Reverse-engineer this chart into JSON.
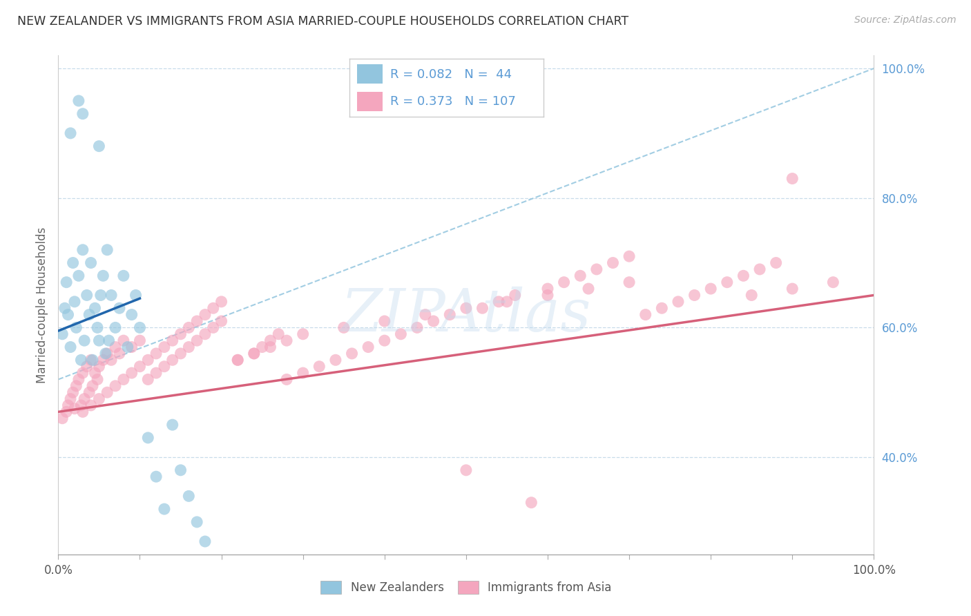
{
  "title": "NEW ZEALANDER VS IMMIGRANTS FROM ASIA MARRIED-COUPLE HOUSEHOLDS CORRELATION CHART",
  "source": "Source: ZipAtlas.com",
  "ylabel": "Married-couple Households",
  "legend1_label": "New Zealanders",
  "legend2_label": "Immigrants from Asia",
  "R1": 0.082,
  "N1": 44,
  "R2": 0.373,
  "N2": 107,
  "color_blue": "#92c5de",
  "color_pink": "#f4a6be",
  "color_blue_line": "#2166ac",
  "color_pink_line": "#d6607a",
  "color_dashed": "#92c5de",
  "xmin": 0.0,
  "xmax": 100.0,
  "ymin": 25.0,
  "ymax": 102.0,
  "yticks": [
    40,
    60,
    80,
    100
  ],
  "ytick_labels": [
    "40.0%",
    "60.0%",
    "80.0%",
    "100.0%"
  ],
  "xtick_positions": [
    0,
    10,
    20,
    30,
    40,
    50,
    60,
    70,
    80,
    90,
    100
  ],
  "nz_x": [
    0.5,
    0.8,
    1.0,
    1.2,
    1.5,
    1.8,
    2.0,
    2.2,
    2.5,
    2.8,
    3.0,
    3.2,
    3.5,
    3.8,
    4.0,
    4.2,
    4.5,
    4.8,
    5.0,
    5.2,
    5.5,
    5.8,
    6.0,
    6.2,
    6.5,
    7.0,
    7.5,
    8.0,
    8.5,
    9.0,
    9.5,
    10.0,
    11.0,
    12.0,
    13.0,
    14.0,
    15.0,
    16.0,
    17.0,
    18.0,
    1.5,
    2.5,
    3.0,
    5.0
  ],
  "nz_y": [
    59.0,
    63.0,
    67.0,
    62.0,
    57.0,
    70.0,
    64.0,
    60.0,
    68.0,
    55.0,
    72.0,
    58.0,
    65.0,
    62.0,
    70.0,
    55.0,
    63.0,
    60.0,
    58.0,
    65.0,
    68.0,
    56.0,
    72.0,
    58.0,
    65.0,
    60.0,
    63.0,
    68.0,
    57.0,
    62.0,
    65.0,
    60.0,
    43.0,
    37.0,
    32.0,
    45.0,
    38.0,
    34.0,
    30.0,
    27.0,
    90.0,
    95.0,
    93.0,
    88.0
  ],
  "asia_x": [
    0.5,
    1.0,
    1.2,
    1.5,
    1.8,
    2.0,
    2.2,
    2.5,
    2.8,
    3.0,
    3.2,
    3.5,
    3.8,
    4.0,
    4.2,
    4.5,
    4.8,
    5.0,
    5.5,
    6.0,
    6.5,
    7.0,
    7.5,
    8.0,
    9.0,
    10.0,
    11.0,
    12.0,
    13.0,
    14.0,
    15.0,
    16.0,
    17.0,
    18.0,
    19.0,
    20.0,
    22.0,
    24.0,
    25.0,
    26.0,
    27.0,
    28.0,
    30.0,
    32.0,
    34.0,
    36.0,
    38.0,
    40.0,
    42.0,
    44.0,
    46.0,
    48.0,
    50.0,
    52.0,
    54.0,
    56.0,
    58.0,
    60.0,
    62.0,
    64.0,
    66.0,
    68.0,
    70.0,
    72.0,
    74.0,
    76.0,
    78.0,
    80.0,
    82.0,
    84.0,
    86.0,
    88.0,
    90.0,
    3.0,
    4.0,
    5.0,
    6.0,
    7.0,
    8.0,
    9.0,
    10.0,
    11.0,
    12.0,
    13.0,
    14.0,
    15.0,
    16.0,
    17.0,
    18.0,
    19.0,
    20.0,
    22.0,
    24.0,
    26.0,
    28.0,
    30.0,
    35.0,
    40.0,
    45.0,
    50.0,
    55.0,
    60.0,
    65.0,
    70.0,
    85.0,
    90.0,
    95.0
  ],
  "asia_y": [
    46.0,
    47.0,
    48.0,
    49.0,
    50.0,
    47.5,
    51.0,
    52.0,
    48.0,
    53.0,
    49.0,
    54.0,
    50.0,
    55.0,
    51.0,
    53.0,
    52.0,
    54.0,
    55.0,
    56.0,
    55.0,
    57.0,
    56.0,
    58.0,
    57.0,
    58.0,
    52.0,
    53.0,
    54.0,
    55.0,
    56.0,
    57.0,
    58.0,
    59.0,
    60.0,
    61.0,
    55.0,
    56.0,
    57.0,
    58.0,
    59.0,
    52.0,
    53.0,
    54.0,
    55.0,
    56.0,
    57.0,
    58.0,
    59.0,
    60.0,
    61.0,
    62.0,
    38.0,
    63.0,
    64.0,
    65.0,
    33.0,
    66.0,
    67.0,
    68.0,
    69.0,
    70.0,
    71.0,
    62.0,
    63.0,
    64.0,
    65.0,
    66.0,
    67.0,
    68.0,
    69.0,
    70.0,
    83.0,
    47.0,
    48.0,
    49.0,
    50.0,
    51.0,
    52.0,
    53.0,
    54.0,
    55.0,
    56.0,
    57.0,
    58.0,
    59.0,
    60.0,
    61.0,
    62.0,
    63.0,
    64.0,
    55.0,
    56.0,
    57.0,
    58.0,
    59.0,
    60.0,
    61.0,
    62.0,
    63.0,
    64.0,
    65.0,
    66.0,
    67.0,
    65.0,
    66.0,
    67.0
  ],
  "nz_line_x": [
    0,
    10
  ],
  "nz_line_y": [
    59.5,
    64.5
  ],
  "asia_line_x": [
    0,
    100
  ],
  "asia_line_y": [
    47.0,
    65.0
  ],
  "dash_line_x": [
    0,
    100
  ],
  "dash_line_y": [
    52,
    100
  ]
}
